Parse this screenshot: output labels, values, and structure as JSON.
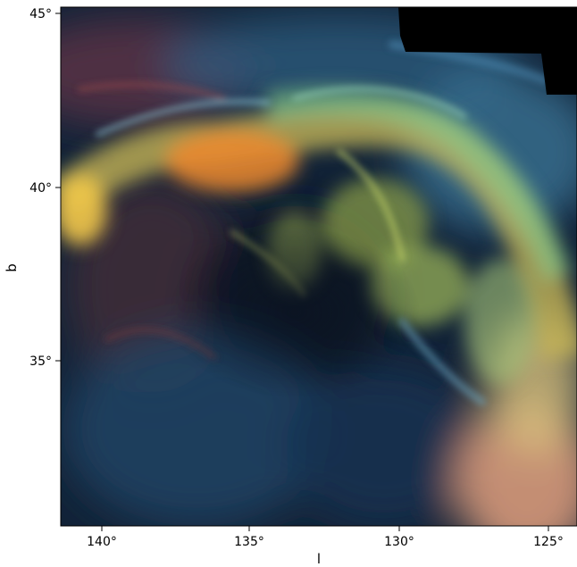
{
  "figure": {
    "type": "sky image",
    "x_axis": {
      "label": "l",
      "ticks": [
        {
          "value": 140,
          "label": "140°"
        },
        {
          "value": 135,
          "label": "135°"
        },
        {
          "value": 130,
          "label": "130°"
        },
        {
          "value": 125,
          "label": "125°"
        }
      ],
      "range": [
        141.3,
        124.1
      ]
    },
    "y_axis": {
      "label": "b",
      "ticks": [
        {
          "value": 45,
          "label": "45°"
        },
        {
          "value": 40,
          "label": "40°"
        },
        {
          "value": 35,
          "label": "35°"
        }
      ],
      "range": [
        30.4,
        45.1
      ]
    },
    "colors": {
      "background": "#0e1e32",
      "arc_yellow": "#d6c85a",
      "arc_green": "#9fd07a",
      "arc_orange": "#e8973a",
      "cyan_wisps": "#6fa9c4",
      "red_filaments": "#8a3c3a",
      "lower_right_peach": "#eab189",
      "masked_region": "#000000"
    }
  }
}
